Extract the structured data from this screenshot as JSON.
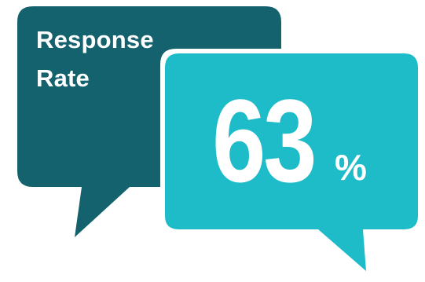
{
  "title": {
    "line1": "Response",
    "line2": "Rate"
  },
  "stat": {
    "value": "63",
    "unit": "%"
  },
  "colors": {
    "back_bubble": "#13626d",
    "front_bubble": "#1dbcc8",
    "outline": "#ffffff",
    "text": "#ffffff"
  }
}
